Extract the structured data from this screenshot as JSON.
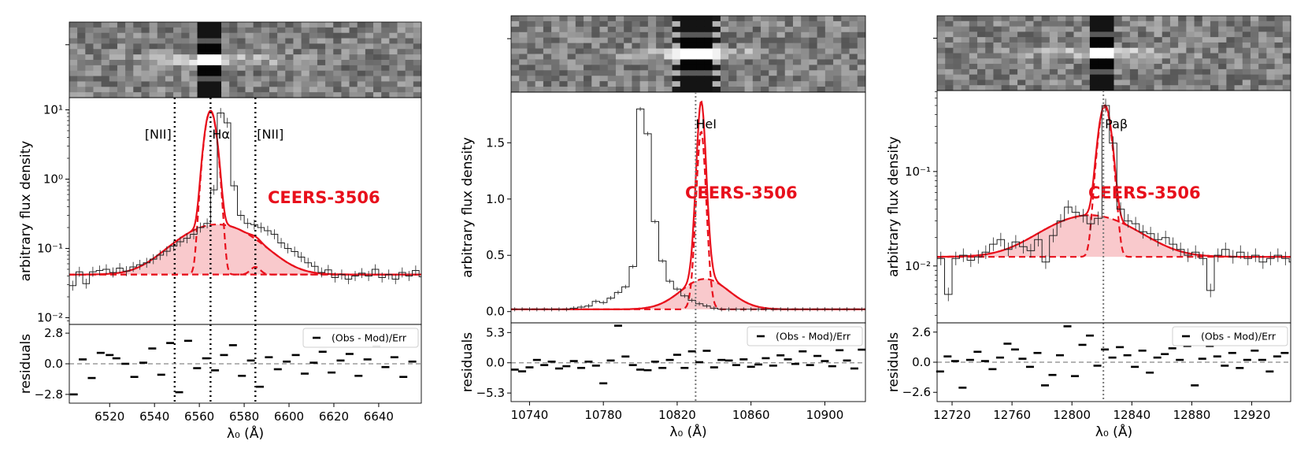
{
  "colors": {
    "model": "#e8101c",
    "fill": "#f9c9cc",
    "title": "#e8101c",
    "data": "#222222",
    "guide_dotted": "#000000",
    "guide_grey": "#777777"
  },
  "chart_data": [
    {
      "type": "line",
      "name": "halpha-panel",
      "title": "CEERS-3506",
      "xlabel": "λ₀ (Å)",
      "ylabel": "arbitrary flux density",
      "yscale": "log",
      "xlim": [
        6502,
        6659
      ],
      "ylim": [
        0.008,
        15
      ],
      "xticks": [
        6520,
        6540,
        6560,
        6580,
        6600,
        6620,
        6640
      ],
      "yticks": [
        0.01,
        0.1,
        1,
        10
      ],
      "ytick_labels": [
        "10⁻²",
        "10⁻¹",
        "10⁰",
        "10¹"
      ],
      "continuum": 0.042,
      "components": [
        {
          "name": "narrow",
          "center": 6565,
          "sigma": 2.1,
          "amp": 9.5
        },
        {
          "name": "broad",
          "center": 6568,
          "sigma": 15,
          "amp": 0.18
        },
        {
          "name": "nii_red",
          "center": 6585,
          "sigma": 2.1,
          "amp": 0.012
        }
      ],
      "line_markers": [
        {
          "x": 6549,
          "label": "[NII]",
          "style": "dotted-black"
        },
        {
          "x": 6565,
          "label": "Hα",
          "style": "dotted-black"
        },
        {
          "x": 6585,
          "label": "[NII]",
          "style": "dotted-black"
        }
      ],
      "data_step": {
        "x0": 6502,
        "dx": 3,
        "y": [
          0.029,
          0.046,
          0.031,
          0.046,
          0.048,
          0.05,
          0.045,
          0.052,
          0.047,
          0.054,
          0.058,
          0.062,
          0.07,
          0.08,
          0.091,
          0.108,
          0.125,
          0.14,
          0.16,
          0.2,
          0.23,
          0.7,
          9,
          6.5,
          0.8,
          0.3,
          0.23,
          0.22,
          0.2,
          0.18,
          0.16,
          0.12,
          0.1,
          0.09,
          0.075,
          0.062,
          0.055,
          0.045,
          0.049,
          0.038,
          0.042,
          0.036,
          0.04,
          0.044,
          0.04,
          0.05,
          0.038,
          0.042,
          0.036,
          0.045,
          0.04,
          0.048,
          0.039
        ]
      },
      "residuals": {
        "ylabel": "residuals",
        "yticks": [
          -2.8,
          0.0,
          2.8
        ],
        "ylim": [
          -3.6,
          3.6
        ],
        "legend": "(Obs - Mod)/Err",
        "x": [
          6504,
          6508,
          6512,
          6516,
          6520,
          6523,
          6527,
          6531,
          6535,
          6539,
          6543,
          6547,
          6551,
          6555,
          6559,
          6563,
          6567,
          6571,
          6575,
          6579,
          6583,
          6587,
          6591,
          6595,
          6599,
          6603,
          6607,
          6611,
          6615,
          6619,
          6623,
          6627,
          6631,
          6635,
          6639,
          6643,
          6647,
          6651,
          6655
        ],
        "y": [
          -2.8,
          0.4,
          -1.3,
          1.0,
          0.8,
          0.5,
          0.0,
          -1.2,
          0.1,
          1.4,
          -1.0,
          1.9,
          -2.6,
          2.1,
          -0.4,
          0.5,
          -0.6,
          0.8,
          1.7,
          -1.1,
          0.3,
          -2.1,
          0.6,
          -0.5,
          0.2,
          0.8,
          -0.9,
          0.1,
          1.1,
          -0.8,
          0.3,
          0.9,
          -1.1,
          0.4,
          1.6,
          -0.3,
          0.6,
          -1.2,
          0.2
        ]
      },
      "cutout_seed": 11
    },
    {
      "type": "line",
      "name": "hei-panel",
      "title": "CEERS-3506",
      "xlabel": "λ₀ (Å)",
      "ylabel": "arbitrary flux density",
      "yscale": "linear",
      "xlim": [
        10730,
        10922
      ],
      "ylim": [
        -0.1,
        1.95
      ],
      "xticks": [
        10740,
        10780,
        10820,
        10860,
        10900
      ],
      "yticks": [
        0.0,
        0.5,
        1.0,
        1.5
      ],
      "ytick_labels": [
        "0.0",
        "0.5",
        "1.0",
        "1.5"
      ],
      "continuum": 0.02,
      "components": [
        {
          "name": "narrow",
          "center": 10833,
          "sigma": 2.8,
          "amp": 1.58
        },
        {
          "name": "broad",
          "center": 10835,
          "sigma": 13,
          "amp": 0.27
        }
      ],
      "line_markers": [
        {
          "x": 10830,
          "label": "HeI",
          "style": "dotted-grey"
        }
      ],
      "data_step": {
        "x0": 10730,
        "dx": 4,
        "y": [
          0.02,
          0.02,
          0.02,
          0.02,
          0.02,
          0.02,
          0.02,
          0.02,
          0.03,
          0.04,
          0.05,
          0.09,
          0.08,
          0.12,
          0.17,
          0.22,
          0.4,
          1.8,
          1.58,
          0.8,
          0.45,
          0.27,
          0.2,
          0.14,
          0.1,
          0.07,
          0.05,
          0.03,
          0.02,
          0.02,
          0.02,
          0.02,
          0.02,
          0.02,
          0.02,
          0.02,
          0.02,
          0.02,
          0.02,
          0.02,
          0.02,
          0.02,
          0.02,
          0.02,
          0.02,
          0.02,
          0.02,
          0.02
        ]
      },
      "residuals": {
        "ylabel": "residuals",
        "yticks": [
          -5.3,
          0.0,
          5.3
        ],
        "ylim": [
          -6.8,
          7.0
        ],
        "legend": "(Obs - Mod)/Err",
        "x": [
          10732,
          10736,
          10740,
          10744,
          10748,
          10752,
          10756,
          10760,
          10764,
          10768,
          10772,
          10776,
          10780,
          10784,
          10788,
          10792,
          10796,
          10800,
          10804,
          10808,
          10812,
          10816,
          10820,
          10824,
          10828,
          10832,
          10836,
          10840,
          10844,
          10848,
          10852,
          10856,
          10860,
          10864,
          10868,
          10872,
          10876,
          10880,
          10884,
          10888,
          10892,
          10896,
          10900,
          10904,
          10908,
          10912,
          10916,
          10920
        ],
        "y": [
          -1.2,
          -1.5,
          -0.8,
          0.5,
          -0.4,
          0.2,
          -1.0,
          -0.6,
          0.3,
          -0.9,
          0.2,
          -0.5,
          -3.6,
          0.4,
          6.5,
          1.1,
          -0.4,
          -1.2,
          -1.3,
          0.2,
          -0.9,
          0.5,
          1.4,
          -0.9,
          2.0,
          0.1,
          2.1,
          -0.8,
          0.5,
          0.4,
          -0.4,
          0.6,
          -0.7,
          -0.3,
          0.8,
          -0.5,
          1.3,
          0.6,
          -0.2,
          2.0,
          -0.4,
          1.2,
          0.3,
          -0.6,
          2.2,
          0.4,
          -1.0,
          2.3
        ]
      },
      "cutout_seed": 23
    },
    {
      "type": "line",
      "name": "pabeta-panel",
      "title": "CEERS-3506",
      "xlabel": "λ₀ (Å)",
      "ylabel": "arbitrary flux density",
      "yscale": "log",
      "xlim": [
        12710,
        12946
      ],
      "ylim": [
        0.0025,
        0.72
      ],
      "xticks": [
        12720,
        12760,
        12800,
        12840,
        12880,
        12920
      ],
      "yticks": [
        0.01,
        0.1
      ],
      "ytick_labels": [
        "10⁻²",
        "10⁻¹"
      ],
      "continuum": 0.0125,
      "components": [
        {
          "name": "narrow",
          "center": 12822,
          "sigma": 3.6,
          "amp": 0.47
        },
        {
          "name": "broad",
          "center": 12812,
          "sigma": 27,
          "amp": 0.022
        }
      ],
      "line_markers": [
        {
          "x": 12821,
          "label": "Paβ",
          "style": "dotted-grey"
        }
      ],
      "data_step": {
        "x0": 12710,
        "dx": 5,
        "y": [
          0.012,
          0.005,
          0.012,
          0.013,
          0.0115,
          0.0125,
          0.014,
          0.017,
          0.019,
          0.015,
          0.018,
          0.016,
          0.0145,
          0.019,
          0.011,
          0.021,
          0.03,
          0.042,
          0.037,
          0.034,
          0.028,
          0.032,
          0.5,
          0.2,
          0.04,
          0.03,
          0.028,
          0.023,
          0.022,
          0.019,
          0.02,
          0.017,
          0.015,
          0.013,
          0.014,
          0.012,
          0.0055,
          0.013,
          0.015,
          0.0125,
          0.014,
          0.012,
          0.013,
          0.011,
          0.012,
          0.013,
          0.012,
          0.011
        ]
      },
      "residuals": {
        "ylabel": "residuals",
        "yticks": [
          -2.6,
          0.0,
          2.6
        ],
        "ylim": [
          -3.4,
          3.4
        ],
        "legend": "(Obs - Mod)/Err",
        "x": [
          12712,
          12717,
          12722,
          12727,
          12732,
          12737,
          12742,
          12747,
          12752,
          12757,
          12762,
          12767,
          12772,
          12777,
          12782,
          12787,
          12792,
          12797,
          12802,
          12807,
          12812,
          12817,
          12822,
          12827,
          12832,
          12837,
          12842,
          12847,
          12852,
          12857,
          12862,
          12867,
          12872,
          12877,
          12882,
          12887,
          12892,
          12897,
          12902,
          12907,
          12912,
          12917,
          12922,
          12927,
          12932,
          12937,
          12942
        ],
        "y": [
          -0.8,
          0.5,
          0.1,
          -2.2,
          0.2,
          0.9,
          0.1,
          -0.6,
          0.4,
          1.6,
          1.1,
          0.3,
          -0.4,
          0.8,
          -2.0,
          -1.1,
          0.6,
          3.1,
          -1.2,
          1.5,
          2.3,
          -0.3,
          1.1,
          0.4,
          1.3,
          0.6,
          -0.4,
          1.0,
          -0.9,
          0.4,
          0.7,
          1.2,
          0.2,
          1.4,
          -2.0,
          0.3,
          1.4,
          0.5,
          -0.3,
          0.8,
          -0.5,
          0.2,
          1.0,
          0.2,
          -0.8,
          0.5,
          0.8
        ]
      },
      "cutout_seed": 37
    }
  ]
}
